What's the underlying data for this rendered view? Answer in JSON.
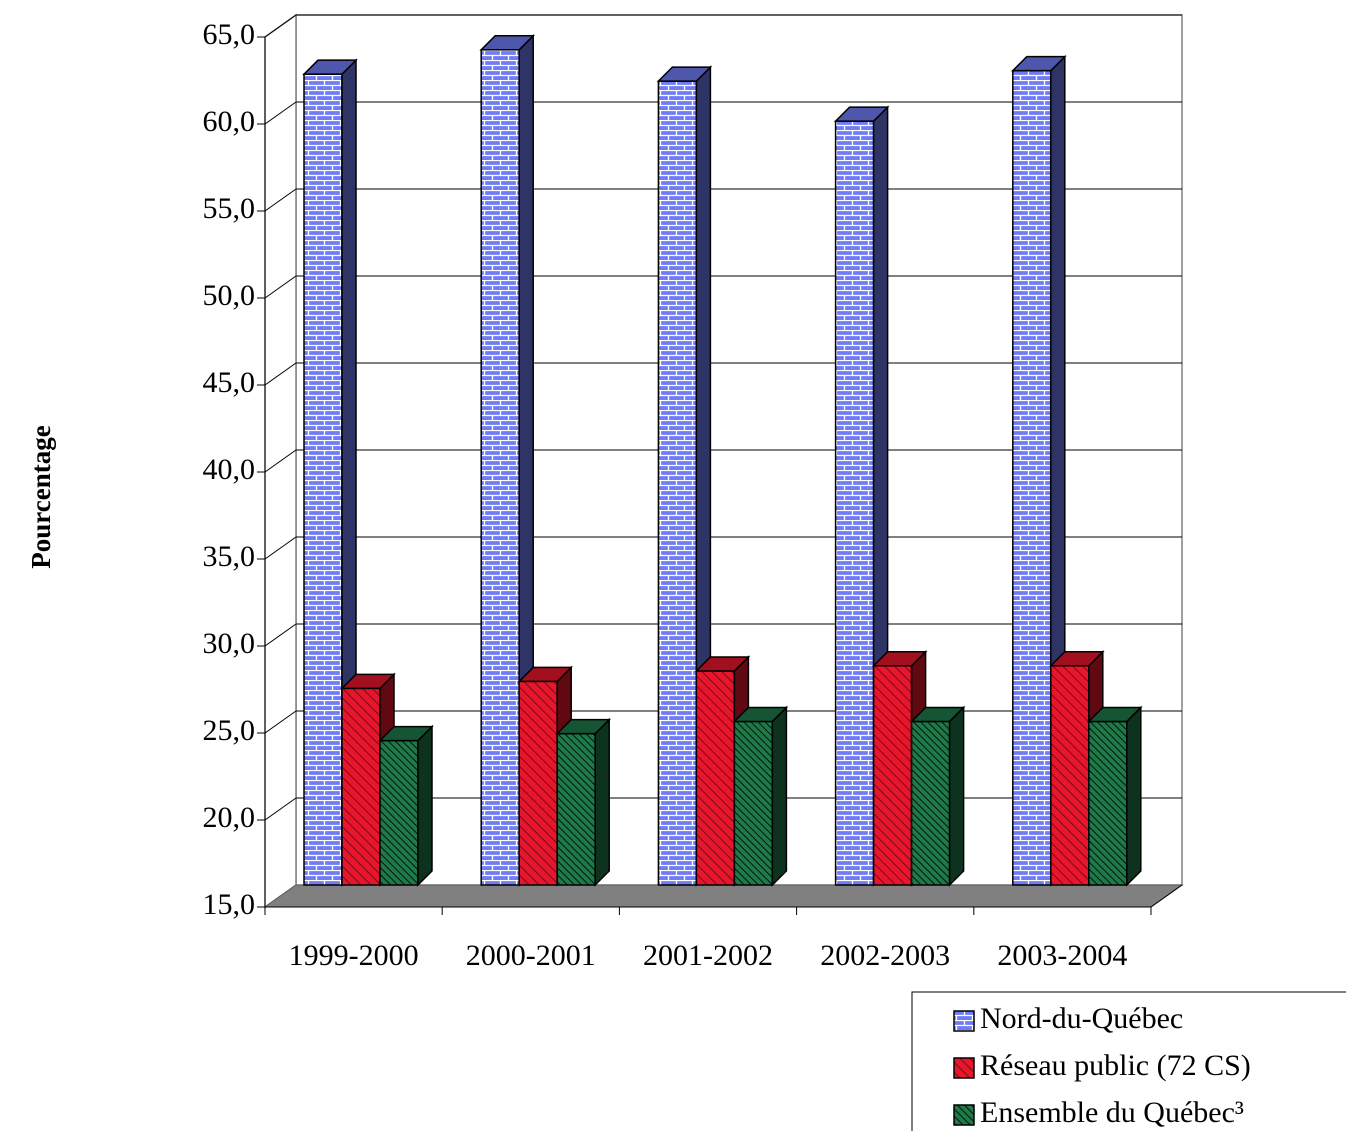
{
  "chart_data": {
    "type": "bar",
    "title": "",
    "xlabel": "",
    "ylabel": "Pourcentage",
    "categories": [
      "1999-2000",
      "2000-2001",
      "2001-2002",
      "2002-2003",
      "2003-2004"
    ],
    "ylim": [
      15,
      65
    ],
    "yticks": [
      "15,0",
      "20,0",
      "25,0",
      "30,0",
      "35,0",
      "40,0",
      "45,0",
      "50,0",
      "55,0",
      "60,0",
      "65,0"
    ],
    "grid": true,
    "three_d": true,
    "legend_position": "bottom-right",
    "series": [
      {
        "name": "Nord-du-Québec",
        "color": "#6f7cf5",
        "pattern": "bricks",
        "values": [
          61.6,
          63.0,
          61.2,
          58.9,
          61.8
        ]
      },
      {
        "name": "Réseau public (72 CS)",
        "color": "#e8162c",
        "pattern": "diagonal-stripes",
        "values": [
          26.3,
          26.7,
          27.3,
          27.6,
          27.6
        ]
      },
      {
        "name": "Ensemble du Québec³",
        "color": "#1f7a4a",
        "pattern": "dense-diagonal-stripes",
        "values": [
          23.3,
          23.7,
          24.4,
          24.4,
          24.4
        ]
      }
    ]
  }
}
